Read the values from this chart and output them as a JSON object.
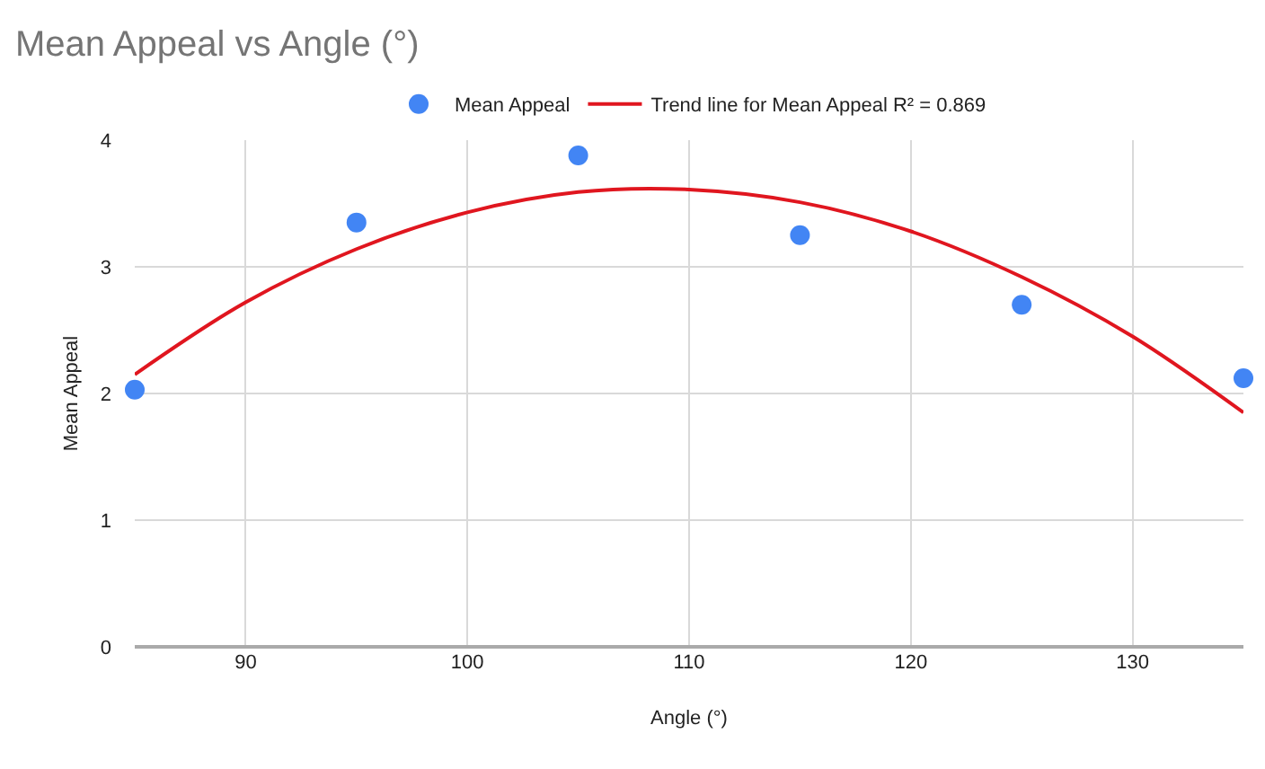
{
  "chart_data": {
    "type": "scatter",
    "title": "Mean Appeal vs Angle (°)",
    "xlabel": "Angle (°)",
    "ylabel": "Mean Appeal",
    "xlim": [
      85,
      135
    ],
    "xticks": [
      90,
      100,
      110,
      120,
      130
    ],
    "ylim": [
      0,
      4
    ],
    "yticks": [
      0,
      1,
      2,
      3,
      4
    ],
    "grid": true,
    "legend": "top",
    "series": [
      {
        "name": "Mean Appeal",
        "color": "#4285f4",
        "marker": "circle",
        "x": [
          85,
          95,
          105,
          115,
          125,
          135
        ],
        "values": [
          2.03,
          3.35,
          3.88,
          3.25,
          2.7,
          2.12
        ]
      },
      {
        "type": "line",
        "name": "Trend line for Mean Appeal R² = 0.869",
        "color": "#e0161f",
        "marker": "none",
        "line_style": "solid",
        "x": [
          85,
          90,
          95,
          100,
          105,
          110,
          115,
          120,
          125,
          130,
          135
        ],
        "values": [
          2.15,
          2.72,
          3.14,
          3.43,
          3.59,
          3.61,
          3.51,
          3.28,
          2.92,
          2.45,
          1.85
        ]
      }
    ]
  }
}
